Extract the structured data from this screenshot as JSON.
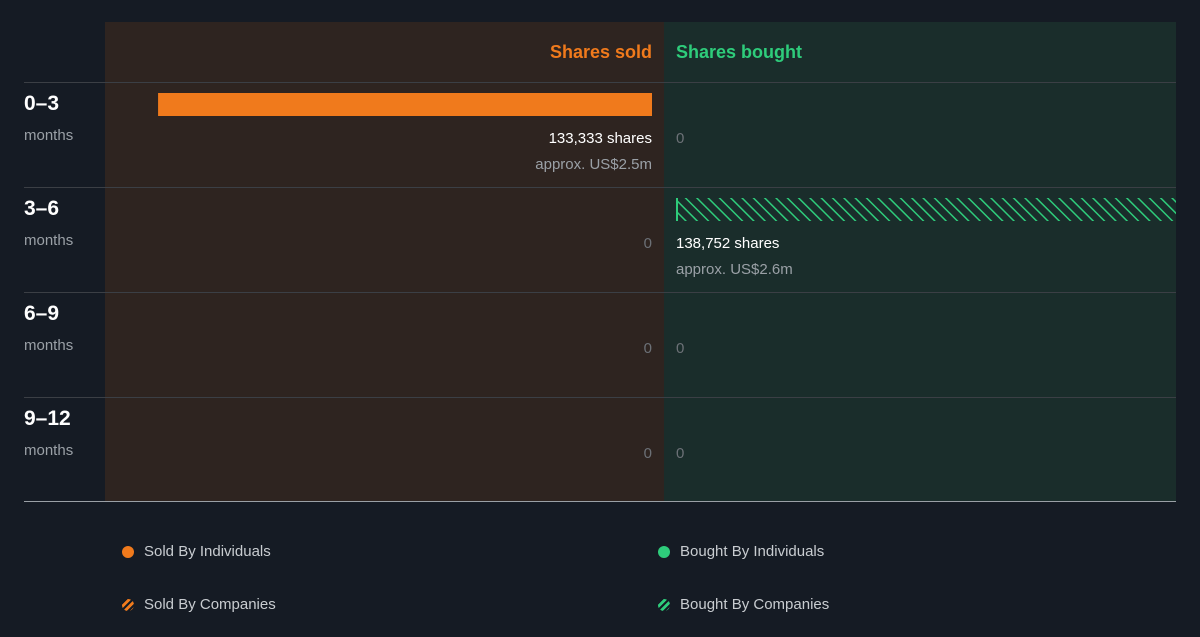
{
  "chart_data": {
    "type": "bar",
    "headers": {
      "sold": "Shares sold",
      "bought": "Shares bought"
    },
    "rows": [
      {
        "period": "0–3",
        "unit": "months",
        "sold": {
          "shares": 133333,
          "shares_label": "133,333 shares",
          "approx": "approx. US$2.5m",
          "zero_label": "",
          "type": "individuals"
        },
        "bought": {
          "shares": 0,
          "shares_label": "",
          "approx": "",
          "zero_label": "0",
          "type": ""
        }
      },
      {
        "period": "3–6",
        "unit": "months",
        "sold": {
          "shares": 0,
          "shares_label": "",
          "approx": "",
          "zero_label": "0",
          "type": ""
        },
        "bought": {
          "shares": 138752,
          "shares_label": "138,752 shares",
          "approx": "approx. US$2.6m",
          "zero_label": "",
          "type": "companies"
        }
      },
      {
        "period": "6–9",
        "unit": "months",
        "sold": {
          "shares": 0,
          "shares_label": "",
          "approx": "",
          "zero_label": "0",
          "type": ""
        },
        "bought": {
          "shares": 0,
          "shares_label": "",
          "approx": "",
          "zero_label": "0",
          "type": ""
        }
      },
      {
        "period": "9–12",
        "unit": "months",
        "sold": {
          "shares": 0,
          "shares_label": "",
          "approx": "",
          "zero_label": "0",
          "type": ""
        },
        "bought": {
          "shares": 0,
          "shares_label": "",
          "approx": "",
          "zero_label": "0",
          "type": ""
        }
      }
    ],
    "max_shares": 138752,
    "legend": [
      {
        "label": "Sold By Individuals",
        "color": "#f07a1c",
        "style": "solid"
      },
      {
        "label": "Bought By Individuals",
        "color": "#2ecc7b",
        "style": "solid"
      },
      {
        "label": "Sold By Companies",
        "color": "#f07a1c",
        "style": "hatched"
      },
      {
        "label": "Bought By Companies",
        "color": "#2ecc7b",
        "style": "hatched"
      }
    ],
    "colors": {
      "sold": "#f07a1c",
      "bought": "#2ecc7b",
      "bg": "#151b24",
      "sold_panel": "#2e2420",
      "bought_panel": "#1a2d2b"
    }
  }
}
